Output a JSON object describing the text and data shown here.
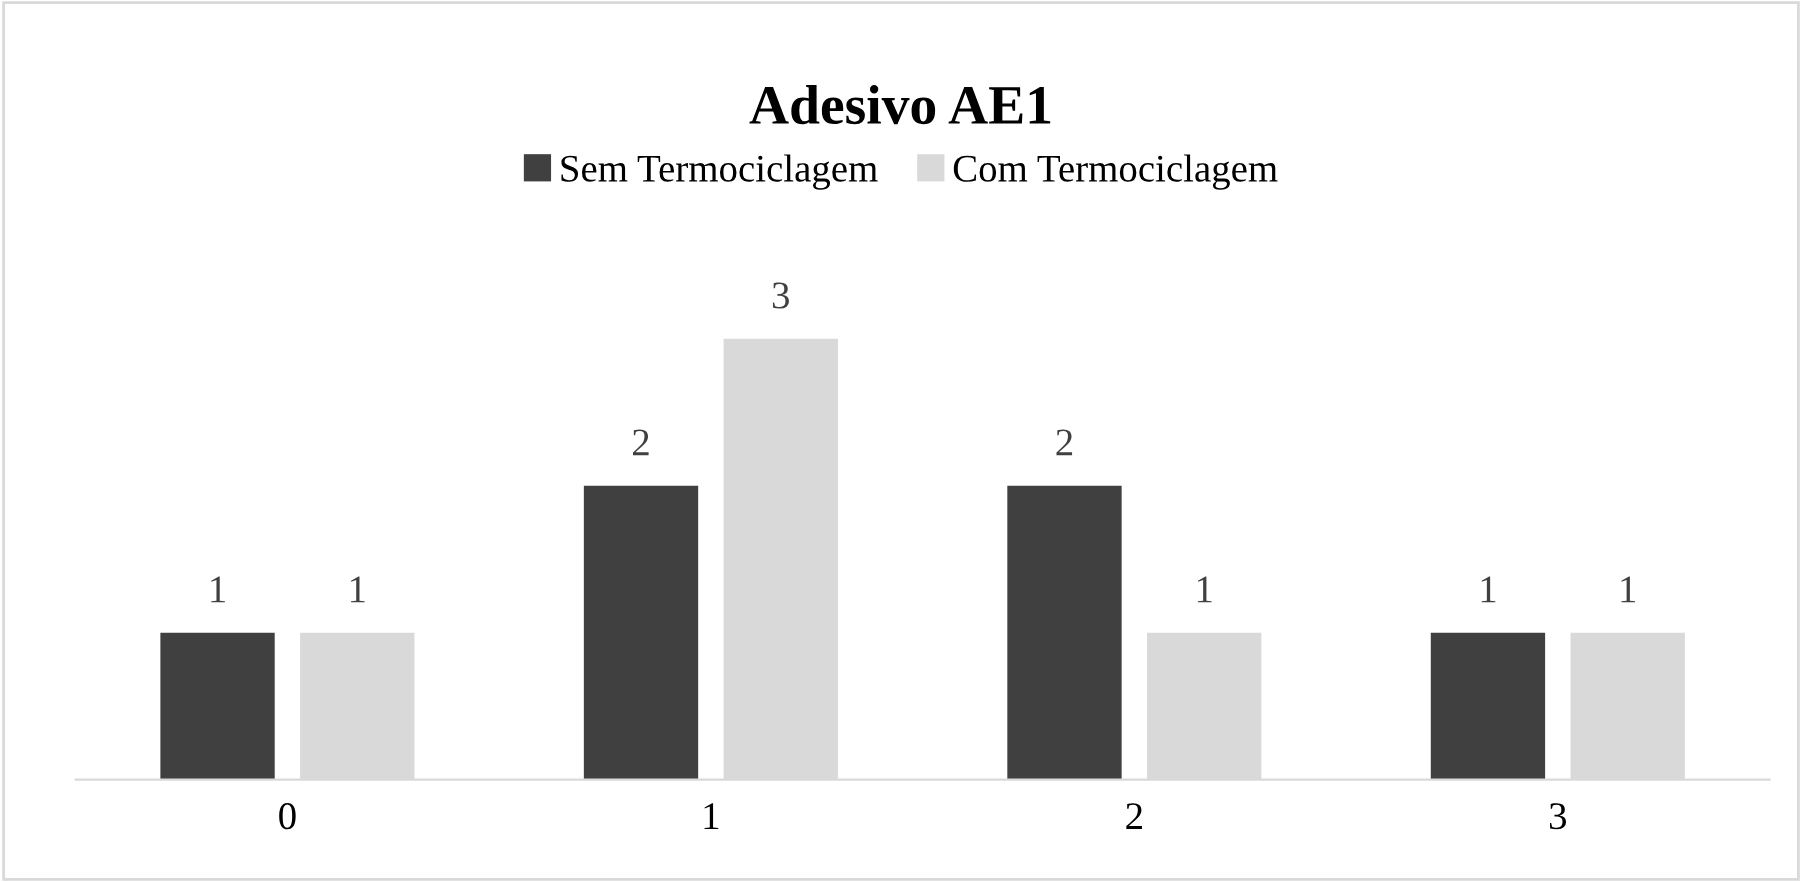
{
  "chart_data": {
    "type": "bar",
    "title": "Adesivo AE1",
    "categories": [
      "0",
      "1",
      "2",
      "3"
    ],
    "series": [
      {
        "name": "Sem Termociclagem",
        "color": "#404040",
        "values": [
          1,
          2,
          2,
          1
        ]
      },
      {
        "name": "Com Termociclagem",
        "color": "#d9d9d9",
        "values": [
          1,
          3,
          1,
          1
        ]
      }
    ],
    "data_labels": true,
    "grid": false,
    "legend": "top"
  }
}
